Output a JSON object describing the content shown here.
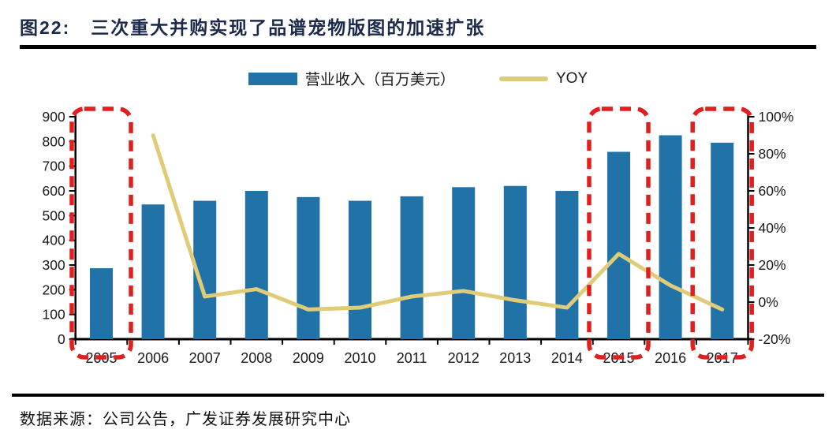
{
  "figure": {
    "label": "图22:",
    "title": "三次重大并购实现了品谱宠物版图的加速扩张"
  },
  "legend": {
    "bar_label": "营业收入（百万美元）",
    "line_label": "YOY"
  },
  "source": {
    "text": "数据来源：公司公告，广发证券发展研究中心"
  },
  "chart_data": {
    "type": "bar",
    "subtype": "bar+line combo, dual axis",
    "title": "三次重大并购实现了品谱宠物版图的加速扩张",
    "categories": [
      "2005",
      "2006",
      "2007",
      "2008",
      "2009",
      "2010",
      "2011",
      "2012",
      "2013",
      "2014",
      "2015",
      "2016",
      "2017"
    ],
    "series": [
      {
        "name": "营业收入（百万美元）",
        "type": "bar",
        "axis": "left",
        "values": [
          287,
          545,
          560,
          600,
          575,
          560,
          578,
          615,
          620,
          600,
          758,
          825,
          795
        ]
      },
      {
        "name": "YOY",
        "type": "line",
        "axis": "right",
        "unit": "%",
        "values": [
          null,
          90,
          3,
          7,
          -4,
          -3,
          3,
          6,
          1,
          -3,
          26,
          9,
          -4
        ]
      }
    ],
    "left_axis": {
      "range": [
        0,
        900
      ],
      "ticks": [
        "0",
        "100",
        "200",
        "300",
        "400",
        "500",
        "600",
        "700",
        "800",
        "900"
      ]
    },
    "right_axis": {
      "range": [
        -20,
        100
      ],
      "ticks": [
        "-20%",
        "0%",
        "20%",
        "40%",
        "60%",
        "80%",
        "100%"
      ]
    },
    "xlabel": "",
    "ylabel": "",
    "grid": false,
    "legend_position": "top-center",
    "highlighted_categories": [
      "2005",
      "2015",
      "2017"
    ],
    "colors": {
      "bar": "#2172a7",
      "line": "#e0cc78",
      "highlight": "#e0201e",
      "title": "#1b2a4a",
      "axis": "#000000"
    }
  }
}
